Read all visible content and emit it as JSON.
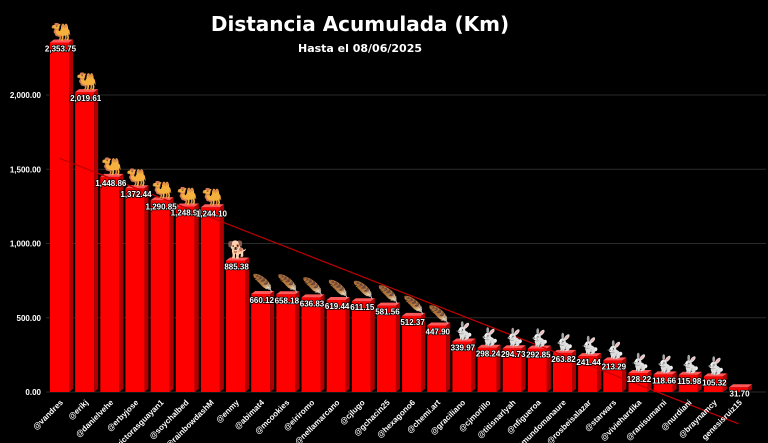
{
  "chart_data": {
    "type": "bar",
    "title": "Distancia Acumulada (Km)",
    "subtitle": "Hasta el 08/06/2025",
    "xlabel": "",
    "ylabel": "",
    "ylim": [
      0,
      2400
    ],
    "grid": true,
    "legend": "none",
    "yticks": [
      0,
      500,
      1000,
      1500,
      2000
    ],
    "ytick_labels": [
      "0.00",
      "500.00",
      "1,000.00",
      "1,500.00",
      "2,000.00"
    ],
    "categories": [
      "@vandres",
      "@erikj",
      "@danielvehe",
      "@erbyjose",
      "@victorasguayan1",
      "@soychalbed",
      "@rainbowdashM",
      "@enmy",
      "@abimat4",
      "@mcookies",
      "@eiriromo",
      "@nellamarcano",
      "@cjlugo",
      "@gchacin25",
      "@hexagono6",
      "@chemi.art",
      "@graciliano",
      "@cjmorillo",
      "@titisnarlyah",
      "@nfigueroa",
      "@mundomanaure",
      "@rosbeisalazar",
      "@starwars",
      "@viviehardika",
      "@ranisumarni",
      "@nurdiani",
      "@braynamcy",
      "genesisruiz15"
    ],
    "values": [
      2353.75,
      2019.61,
      1448.86,
      1372.44,
      1290.85,
      1248.91,
      1244.1,
      885.38,
      660.12,
      658.18,
      636.83,
      619.44,
      611.15,
      581.56,
      512.37,
      447.9,
      339.97,
      298.24,
      294.73,
      292.85,
      263.82,
      241.44,
      213.29,
      128.22,
      118.66,
      115.98,
      105.32,
      31.7
    ],
    "value_labels": [
      "2,353.75",
      "2,019.61",
      "1,448.86",
      "1,372.44",
      "1,290.85",
      "1,248.91",
      "1,244.10",
      "885.38",
      "660.12",
      "658.18",
      "636.83",
      "619.44",
      "611.15",
      "581.56",
      "512.37",
      "447.90",
      "339.97",
      "298.24",
      "294.73",
      "292.85",
      "263.82",
      "241.44",
      "213.29",
      "128.22",
      "118.66",
      "115.98",
      "105.32",
      "31.70"
    ],
    "icons": [
      "camel-icon",
      "camel-icon",
      "camel-icon",
      "camel-icon",
      "camel-icon",
      "camel-icon",
      "camel-icon",
      "dog-icon",
      "feather-icon",
      "feather-icon",
      "feather-icon",
      "feather-icon",
      "feather-icon",
      "feather-icon",
      "feather-icon",
      "feather-icon",
      "rabbit-icon",
      "rabbit-icon",
      "rabbit-icon",
      "rabbit-icon",
      "rabbit-icon",
      "rabbit-icon",
      "rabbit-icon",
      "rabbit-icon",
      "rabbit-icon",
      "rabbit-icon",
      "rabbit-icon",
      ""
    ],
    "trendline": true,
    "colors": {
      "bar": "#ff0000",
      "bar_shade": "#b00000",
      "bar_top": "#ff5a5a",
      "background": "#000000",
      "text": "#ffffff",
      "trend": "#c00000"
    }
  }
}
